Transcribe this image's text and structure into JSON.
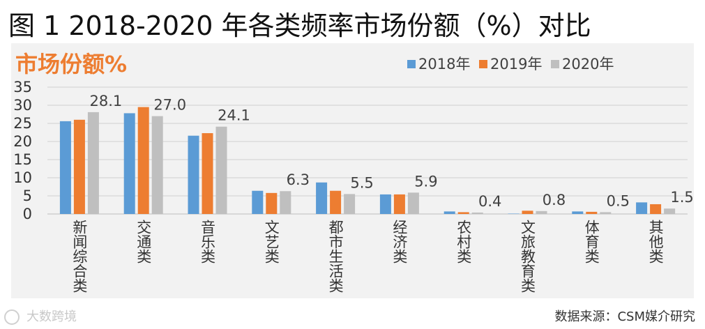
{
  "title": "图 1 2018-2020 年各类频率市场份额（%）对比",
  "source": "数据来源：CSM媒介研究",
  "watermark": "大数跨境",
  "colors": {
    "series_2018": "#5b9bd5",
    "series_2019": "#ed7d31",
    "series_2020": "#bfbfbf",
    "subtitle": "#ed7d31",
    "background": "#f2f2f2"
  },
  "chart_data": {
    "type": "bar",
    "title": "市场份额%",
    "xlabel": "",
    "ylabel": "",
    "ylim": [
      0,
      35
    ],
    "yticks": [
      0,
      5,
      10,
      15,
      20,
      25,
      30,
      35
    ],
    "grid": true,
    "legend": "top-right",
    "categories": [
      "新闻综合类",
      "交通类",
      "音乐类",
      "文艺类",
      "都市生活类",
      "经济类",
      "农村类",
      "文旅教育类",
      "体育类",
      "其他类"
    ],
    "series": [
      {
        "name": "2018年",
        "values": [
          25.6,
          27.8,
          21.6,
          6.4,
          8.7,
          5.4,
          0.7,
          0.1,
          0.7,
          3.2
        ]
      },
      {
        "name": "2019年",
        "values": [
          26.0,
          29.5,
          22.3,
          5.8,
          6.4,
          5.4,
          0.5,
          0.9,
          0.6,
          2.7
        ]
      },
      {
        "name": "2020年",
        "values": [
          28.1,
          27.0,
          24.1,
          6.3,
          5.5,
          5.9,
          0.4,
          0.8,
          0.5,
          1.5
        ]
      }
    ],
    "data_labels": [
      "28.1",
      "27.0",
      "24.1",
      "6.3",
      "5.5",
      "5.9",
      "0.4",
      "0.8",
      "0.5",
      "1.5"
    ]
  }
}
